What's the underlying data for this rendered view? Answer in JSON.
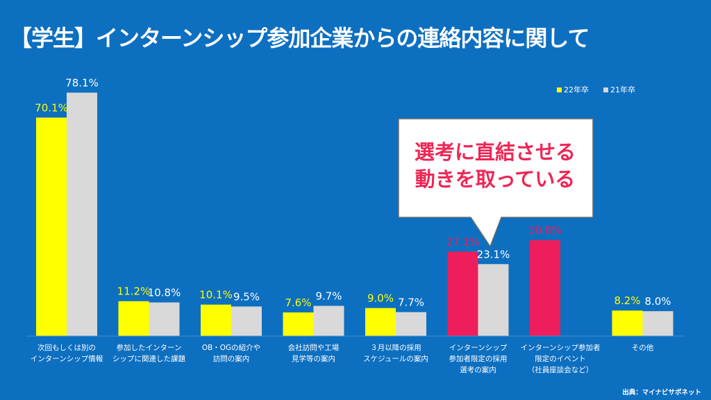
{
  "title": "【学生】インターンシップ参加企業からの連絡内容に関して",
  "source": "出典：マイナビサポネット",
  "callout": {
    "line1": "選考に直結させる",
    "line2": "動きを取っている"
  },
  "colors": {
    "background": "#0d6fc0",
    "series_22": "#ffff00",
    "series_21": "#d9d9d9",
    "highlight": "#ee1e5c",
    "callout_text": "#ee2655"
  },
  "chart_data": {
    "type": "bar",
    "categories": [
      [
        "次回もしくは別の",
        "インターンシップ情報"
      ],
      [
        "参加したインターン",
        "シップに関連した課題"
      ],
      [
        "OB・OGの紹介や",
        "訪問の案内"
      ],
      [
        "会社訪問や工場",
        "見学等の案内"
      ],
      [
        "３月以降の採用",
        "スケジュールの案内"
      ],
      [
        "インターンシップ",
        "参加者限定の採用",
        "選考の案内"
      ],
      [
        "インターンシップ参加者",
        "限定のイベント",
        "（社員座談会など）"
      ],
      [
        "その他"
      ]
    ],
    "series": [
      {
        "name": "22年卒",
        "values": [
          70.1,
          11.2,
          10.1,
          7.6,
          9.0,
          27.1,
          30.8,
          8.2
        ],
        "labels": [
          "70.1%",
          "11.2%",
          "10.1%",
          "7.6%",
          "9.0%",
          "27.1%",
          "30.8%",
          "8.2%"
        ]
      },
      {
        "name": "21年卒",
        "values": [
          78.1,
          10.8,
          9.5,
          9.7,
          7.7,
          23.1,
          null,
          8.0
        ],
        "labels": [
          "78.1%",
          "10.8%",
          "9.5%",
          "9.7%",
          "7.7%",
          "23.1%",
          "",
          "8.0%"
        ]
      }
    ],
    "highlight_categories": [
      5,
      6
    ],
    "ylim": [
      0,
      80
    ],
    "legend": "top-right",
    "grid": false
  }
}
